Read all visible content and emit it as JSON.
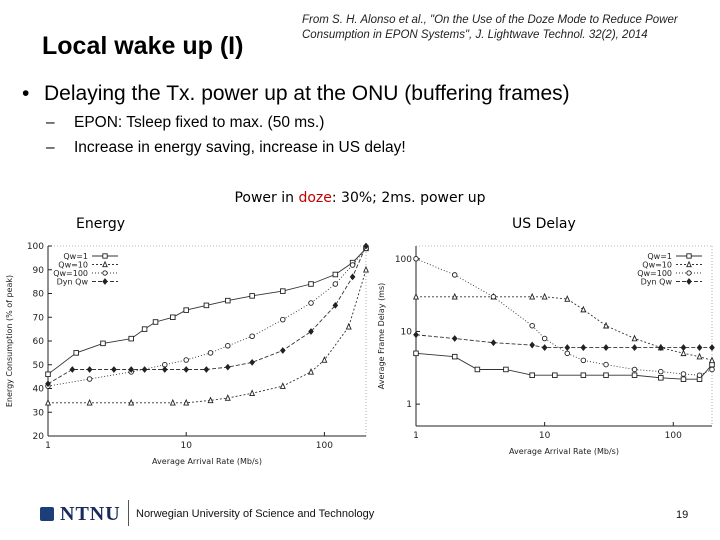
{
  "slide": {
    "title": "Local wake up (I)",
    "citation": "From S. H. Alonso et al., \"On the Use of the Doze Mode to Reduce Power Consumption in EPON Systems\", J. Lightwave Technol. 32(2), 2014",
    "bullet": "Delaying the Tx. power up at the ONU (buffering frames)",
    "subbullets": [
      "EPON: Tsleep fixed to max. (50 ms.)",
      "Increase in energy saving, increase in US delay!"
    ],
    "caption": {
      "prefix": "Power in ",
      "highlight": "doze",
      "suffix": ": 30%; 2ms. power up"
    },
    "footer": {
      "logo": "NTNU",
      "institution": "Norwegian University of Science and Technology",
      "page": "19"
    }
  },
  "chart_data": [
    {
      "type": "line",
      "title": "Energy",
      "xlabel": "Average Arrival Rate (Mb/s)",
      "ylabel": "Energy Consumption (% of peak)",
      "xscale": "log",
      "xlim": [
        1,
        200
      ],
      "ylim": [
        20,
        100
      ],
      "xticks": [
        "1",
        "10",
        "100"
      ],
      "yticks": [
        "20",
        "30",
        "40",
        "50",
        "60",
        "70",
        "80",
        "90",
        "100"
      ],
      "legend": "top-left",
      "series": [
        {
          "name": "Qw=1",
          "marker": "square",
          "x": [
            1,
            1.6,
            2.5,
            4,
            5,
            6,
            8,
            10,
            14,
            20,
            30,
            50,
            80,
            120,
            160,
            200
          ],
          "y": [
            46,
            55,
            59,
            61,
            65,
            68,
            70,
            73,
            75,
            77,
            79,
            81,
            84,
            88,
            93,
            99
          ]
        },
        {
          "name": "Qw=10",
          "marker": "triangle",
          "x": [
            1,
            2,
            4,
            8,
            10,
            15,
            20,
            30,
            50,
            80,
            100,
            150,
            200
          ],
          "y": [
            34,
            34,
            34,
            34,
            34,
            35,
            36,
            38,
            41,
            47,
            52,
            66,
            90
          ]
        },
        {
          "name": "Qw=100",
          "marker": "circle",
          "x": [
            1,
            2,
            4,
            7,
            10,
            15,
            20,
            30,
            50,
            80,
            120,
            160,
            200
          ],
          "y": [
            41,
            44,
            47,
            50,
            52,
            55,
            58,
            62,
            69,
            76,
            84,
            92,
            99
          ]
        },
        {
          "name": "Dyn Qw",
          "marker": "diamond",
          "x": [
            1,
            1.5,
            2,
            3,
            4,
            5,
            7,
            10,
            14,
            20,
            30,
            50,
            80,
            120,
            160,
            200
          ],
          "y": [
            42,
            48,
            48,
            48,
            48,
            48,
            48,
            48,
            48,
            49,
            51,
            56,
            64,
            75,
            87,
            100
          ]
        }
      ]
    },
    {
      "type": "line",
      "title": "US Delay",
      "xlabel": "Average Arrival Rate (Mb/s)",
      "ylabel": "Average Frame Delay (ms)",
      "xscale": "log",
      "yscale": "log",
      "xlim": [
        1,
        200
      ],
      "ylim": [
        0.5,
        150
      ],
      "xticks": [
        "1",
        "10",
        "100"
      ],
      "yticks": [
        "1",
        "10",
        "100"
      ],
      "legend": "top-right",
      "series": [
        {
          "name": "Qw=1",
          "marker": "square",
          "x": [
            1,
            2,
            3,
            5,
            8,
            12,
            20,
            30,
            50,
            80,
            120,
            160,
            200
          ],
          "y": [
            5,
            4.5,
            3,
            3,
            2.5,
            2.5,
            2.5,
            2.5,
            2.5,
            2.3,
            2.2,
            2.2,
            3.5
          ]
        },
        {
          "name": "Qw=10",
          "marker": "triangle",
          "x": [
            1,
            2,
            4,
            8,
            10,
            15,
            20,
            30,
            50,
            80,
            120,
            160,
            200
          ],
          "y": [
            30,
            30,
            30,
            30,
            30,
            28,
            20,
            12,
            8,
            6,
            5,
            4.5,
            4
          ]
        },
        {
          "name": "Qw=100",
          "marker": "circle",
          "x": [
            1,
            2,
            4,
            8,
            10,
            15,
            20,
            30,
            50,
            80,
            120,
            160,
            200
          ],
          "y": [
            100,
            60,
            30,
            12,
            8,
            5,
            4,
            3.5,
            3,
            2.8,
            2.6,
            2.5,
            3
          ]
        },
        {
          "name": "Dyn Qw",
          "marker": "diamond",
          "x": [
            1,
            2,
            4,
            8,
            10,
            15,
            20,
            30,
            50,
            80,
            120,
            160,
            200
          ],
          "y": [
            9,
            8,
            7,
            6.5,
            6,
            6,
            6,
            6,
            6,
            6,
            6,
            6,
            6
          ]
        }
      ]
    }
  ]
}
